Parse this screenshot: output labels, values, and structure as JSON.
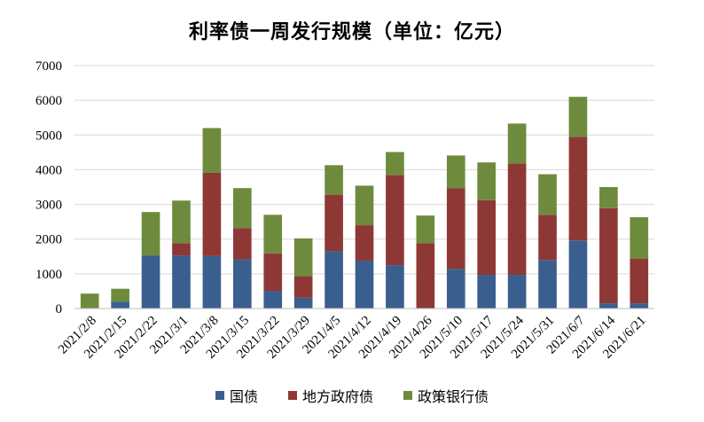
{
  "chart_data": {
    "type": "bar",
    "stacked": true,
    "title": "利率债一周发行规模（单位：亿元）",
    "xlabel": "",
    "ylabel": "",
    "ylim": [
      0,
      7000
    ],
    "yticks": [
      "0",
      "1000",
      "2000",
      "3000",
      "4000",
      "5000",
      "6000",
      "7000"
    ],
    "grid": true,
    "legend_position": "bottom",
    "categories": [
      "2021/2/8",
      "2021/2/15",
      "2021/2/22",
      "2021/3/1",
      "2021/3/8",
      "2021/3/15",
      "2021/3/22",
      "2021/3/29",
      "2021/4/5",
      "2021/4/12",
      "2021/4/19",
      "2021/4/26",
      "2021/5/10",
      "2021/5/17",
      "2021/5/24",
      "2021/5/31",
      "2021/6/7",
      "2021/6/14",
      "2021/6/21"
    ],
    "series": [
      {
        "name": "国债",
        "color": "#3a5f8f",
        "values": [
          0,
          200,
          1530,
          1530,
          1510,
          1420,
          510,
          310,
          1650,
          1380,
          1250,
          0,
          1140,
          970,
          970,
          1400,
          1960,
          150,
          150
        ]
      },
      {
        "name": "地方政府债",
        "color": "#8e3835",
        "values": [
          0,
          0,
          0,
          350,
          2400,
          900,
          1080,
          620,
          1630,
          1020,
          2600,
          1880,
          2330,
          2150,
          3210,
          1300,
          2990,
          2740,
          1290
        ]
      },
      {
        "name": "政策银行债",
        "color": "#6e8b3d",
        "values": [
          430,
          370,
          1250,
          1230,
          1290,
          1150,
          1110,
          1090,
          850,
          1140,
          660,
          800,
          940,
          1090,
          1150,
          1170,
          1150,
          610,
          1190
        ]
      }
    ]
  }
}
